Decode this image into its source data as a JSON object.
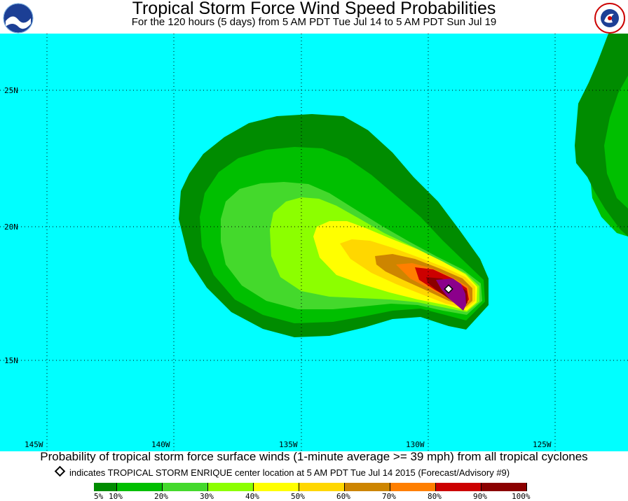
{
  "header": {
    "title": "Tropical Storm Force Wind Speed Probabilities",
    "subtitle": "For the 120 hours (5 days) from 5 AM PDT Tue Jul 14 to 5 AM PDT Sun Jul 19",
    "left_logo_text": "NOAA",
    "right_logo_text": "NATIONAL WEATHER SERVICE"
  },
  "map": {
    "ocean_color": "#00ffff",
    "lat_labels": [
      "25N",
      "20N",
      "15N"
    ],
    "lon_labels": [
      "145W",
      "140W",
      "135W",
      "130W",
      "125W"
    ]
  },
  "footer": {
    "caption": "Probability of tropical storm force surface winds (1-minute average >= 39 mph) from all tropical cyclones",
    "note": "indicates TROPICAL STORM ENRIQUE center location at 5 AM PDT Tue Jul 14 2015 (Forecast/Advisory #9)"
  },
  "legend": {
    "labels": [
      "5%",
      "10%",
      "20%",
      "30%",
      "40%",
      "50%",
      "60%",
      "70%",
      "80%",
      "90%",
      "100%"
    ],
    "colors": [
      "#008c00",
      "#00bf00",
      "#44d92c",
      "#8cff00",
      "#ffff00",
      "#ffd700",
      "#cd8500",
      "#ff7f00",
      "#cc0000",
      "#8b0000",
      "#8b008b"
    ]
  }
}
